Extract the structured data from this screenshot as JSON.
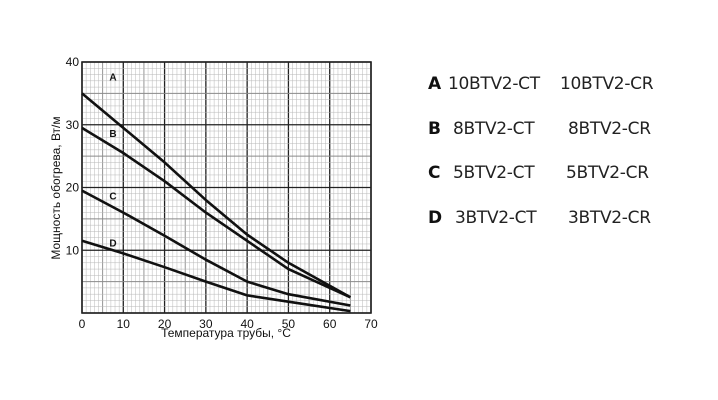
{
  "chart_data": {
    "type": "line",
    "title": "",
    "xlabel": "Температура трубы, °C",
    "ylabel": "Мощность обогрева, Вт/м",
    "xlim": [
      0,
      70
    ],
    "ylim": [
      0,
      40
    ],
    "x_ticks": [
      0,
      10,
      20,
      30,
      40,
      50,
      60,
      70
    ],
    "y_ticks": [
      10,
      20,
      30,
      40
    ],
    "grid": true,
    "x": [
      0,
      10,
      20,
      30,
      40,
      50,
      65
    ],
    "series": [
      {
        "name": "A",
        "values": [
          35,
          29.5,
          24,
          18,
          12.5,
          8,
          2.5
        ]
      },
      {
        "name": "B",
        "values": [
          29.5,
          25.5,
          21,
          16,
          11.5,
          7,
          2.5
        ]
      },
      {
        "name": "C",
        "values": [
          19.5,
          16,
          12.3,
          8.5,
          5,
          3,
          1.2
        ]
      },
      {
        "name": "D",
        "values": [
          11.5,
          9.5,
          7.3,
          5,
          2.8,
          1.8,
          0.3
        ]
      }
    ],
    "curve_labels": [
      {
        "text": "A",
        "x": 7.5,
        "y": 37.5
      },
      {
        "text": "B",
        "x": 7.5,
        "y": 28.5
      },
      {
        "text": "C",
        "x": 7.5,
        "y": 18.5
      },
      {
        "text": "D",
        "x": 7.5,
        "y": 11
      },
      {
        "text": "",
        "x": 0,
        "y": 0
      }
    ],
    "legend_position": "right"
  },
  "legend": {
    "items": [
      {
        "key": "A",
        "ct": "10BTV2-CT",
        "cr": "10BTV2-CR"
      },
      {
        "key": "B",
        "ct": "8BTV2-CT",
        "cr": "8BTV2-CR"
      },
      {
        "key": "C",
        "ct": "5BTV2-CT",
        "cr": "5BTV2-CR"
      },
      {
        "key": "D",
        "ct": "3BTV2-CT",
        "cr": "3BTV2-CR"
      }
    ]
  },
  "colors": {
    "line": "#111111",
    "grid_minor": "#b8b8b8",
    "grid_major": "#222222",
    "text": "#111111"
  }
}
